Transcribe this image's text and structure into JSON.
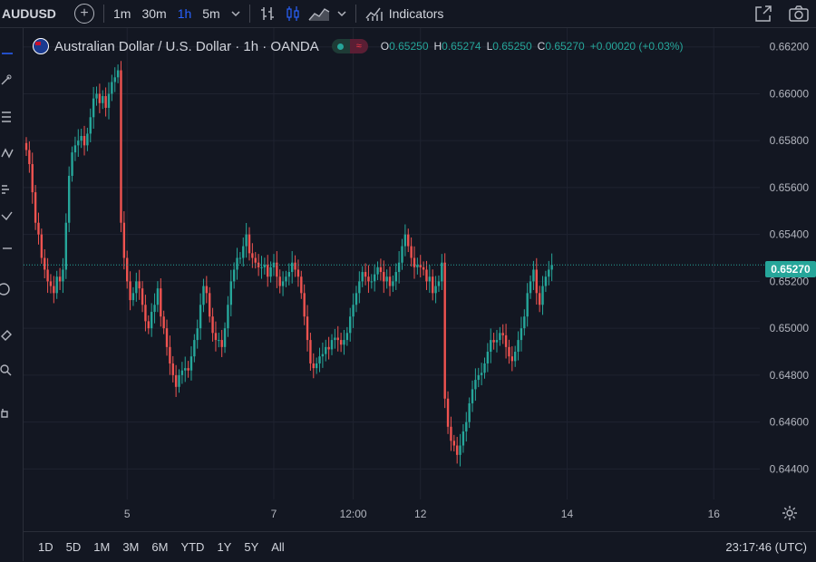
{
  "header": {
    "symbol": "AUDUSD",
    "intervals": [
      "1m",
      "30m",
      "1h",
      "5m"
    ],
    "active_interval": "1h",
    "indicators_label": "Indicators"
  },
  "legend": {
    "title": "Australian Dollar / U.S. Dollar · 1h · OANDA",
    "o_key": "O",
    "o_val": "0.65250",
    "h_key": "H",
    "h_val": "0.65274",
    "l_key": "L",
    "l_val": "0.65250",
    "c_key": "C",
    "c_val": "0.65270",
    "change": "+0.00020 (+0.03%)"
  },
  "last_price": "0.65270",
  "ranges": [
    "1D",
    "5D",
    "1M",
    "3M",
    "6M",
    "YTD",
    "1Y",
    "5Y",
    "All"
  ],
  "clock": "23:17:46 (UTC)",
  "colors": {
    "up": "#26a69a",
    "down": "#ef5350",
    "background": "#131722",
    "accent": "#2962ff"
  },
  "chart_data": {
    "type": "candlestick",
    "y_ticks": [
      "0.66200",
      "0.66000",
      "0.65800",
      "0.65600",
      "0.65400",
      "0.65200",
      "0.65000",
      "0.64800",
      "0.64600",
      "0.64400"
    ],
    "ylim": [
      0.6427,
      0.6628
    ],
    "x_ticks": [
      {
        "label": "5",
        "x": 33
      },
      {
        "label": "7",
        "x": 81
      },
      {
        "label": "12:00",
        "x": 107
      },
      {
        "label": "12",
        "x": 129
      },
      {
        "label": "14",
        "x": 177
      },
      {
        "label": "16",
        "x": 225
      }
    ],
    "last_price": 0.6527,
    "closes": [
      0.6576,
      0.657,
      0.6558,
      0.6545,
      0.654,
      0.653,
      0.6525,
      0.652,
      0.6518,
      0.6515,
      0.6522,
      0.652,
      0.6525,
      0.6545,
      0.6565,
      0.6575,
      0.6578,
      0.658,
      0.6582,
      0.6578,
      0.6583,
      0.659,
      0.6598,
      0.66,
      0.6596,
      0.6599,
      0.6594,
      0.66,
      0.6605,
      0.6607,
      0.661,
      0.6545,
      0.653,
      0.652,
      0.6512,
      0.6515,
      0.652,
      0.6517,
      0.651,
      0.6503,
      0.65,
      0.6507,
      0.651,
      0.6517,
      0.6505,
      0.65,
      0.6492,
      0.6485,
      0.648,
      0.6475,
      0.648,
      0.6482,
      0.6483,
      0.6482,
      0.6488,
      0.6495,
      0.65,
      0.651,
      0.6518,
      0.6515,
      0.6505,
      0.6498,
      0.6495,
      0.6495,
      0.6492,
      0.65,
      0.651,
      0.652,
      0.6525,
      0.653,
      0.653,
      0.6535,
      0.654,
      0.6532,
      0.653,
      0.6528,
      0.6526,
      0.6526,
      0.6527,
      0.6522,
      0.6526,
      0.6528,
      0.6522,
      0.6518,
      0.652,
      0.6522,
      0.6524,
      0.6528,
      0.6525,
      0.6522,
      0.6515,
      0.6505,
      0.6495,
      0.6485,
      0.6483,
      0.6485,
      0.6488,
      0.6489,
      0.6492,
      0.6491,
      0.6495,
      0.6496,
      0.6495,
      0.6493,
      0.6495,
      0.6498,
      0.6505,
      0.651,
      0.6515,
      0.652,
      0.6524,
      0.6522,
      0.652,
      0.652,
      0.6523,
      0.6526,
      0.6524,
      0.652,
      0.6522,
      0.6518,
      0.652,
      0.6524,
      0.6528,
      0.6535,
      0.654,
      0.6535,
      0.653,
      0.6526,
      0.6527,
      0.6526,
      0.6525,
      0.652,
      0.6522,
      0.6515,
      0.6518,
      0.652,
      0.6528,
      0.647,
      0.6458,
      0.6452,
      0.645,
      0.6446,
      0.645,
      0.6456,
      0.646,
      0.6468,
      0.6474,
      0.6478,
      0.648,
      0.6481,
      0.6485,
      0.649,
      0.6495,
      0.6494,
      0.6495,
      0.6498,
      0.6497,
      0.6492,
      0.6488,
      0.6486,
      0.649,
      0.6495,
      0.65,
      0.6505,
      0.6515,
      0.652,
      0.6525,
      0.6515,
      0.651,
      0.6518,
      0.6522,
      0.6525,
      0.6527
    ]
  }
}
